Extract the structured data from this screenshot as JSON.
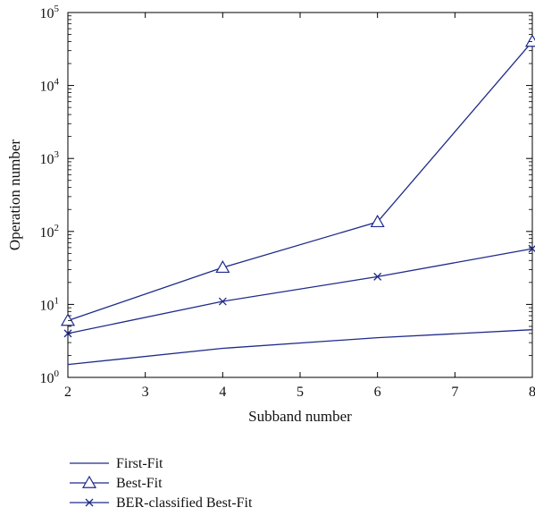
{
  "chart_data": {
    "type": "line",
    "title": "",
    "xlabel": "Subband number",
    "ylabel": "Operation number",
    "xlim": [
      2,
      8
    ],
    "ylim": [
      1,
      100000
    ],
    "yscale": "log",
    "grid": false,
    "legend_position": "bottom-left, below plot",
    "line_color": "#1f2a8a",
    "x_ticks": [
      "2",
      "3",
      "4",
      "5",
      "6",
      "7",
      "8"
    ],
    "y_ticks": [
      {
        "base": "10",
        "exp": "0"
      },
      {
        "base": "10",
        "exp": "1"
      },
      {
        "base": "10",
        "exp": "2"
      },
      {
        "base": "10",
        "exp": "3"
      },
      {
        "base": "10",
        "exp": "4"
      },
      {
        "base": "10",
        "exp": "5"
      }
    ],
    "series": [
      {
        "name": "First-Fit",
        "marker": "none",
        "x": [
          2,
          4,
          6,
          8
        ],
        "y": [
          1.5,
          2.5,
          3.5,
          4.5
        ]
      },
      {
        "name": "Best-Fit",
        "marker": "triangle",
        "x": [
          2,
          4,
          6,
          8
        ],
        "y": [
          6,
          32,
          135,
          40000
        ]
      },
      {
        "name": "BER-classified Best-Fit",
        "marker": "x",
        "x": [
          2,
          4,
          6,
          8
        ],
        "y": [
          4,
          11,
          24,
          58
        ]
      }
    ]
  }
}
